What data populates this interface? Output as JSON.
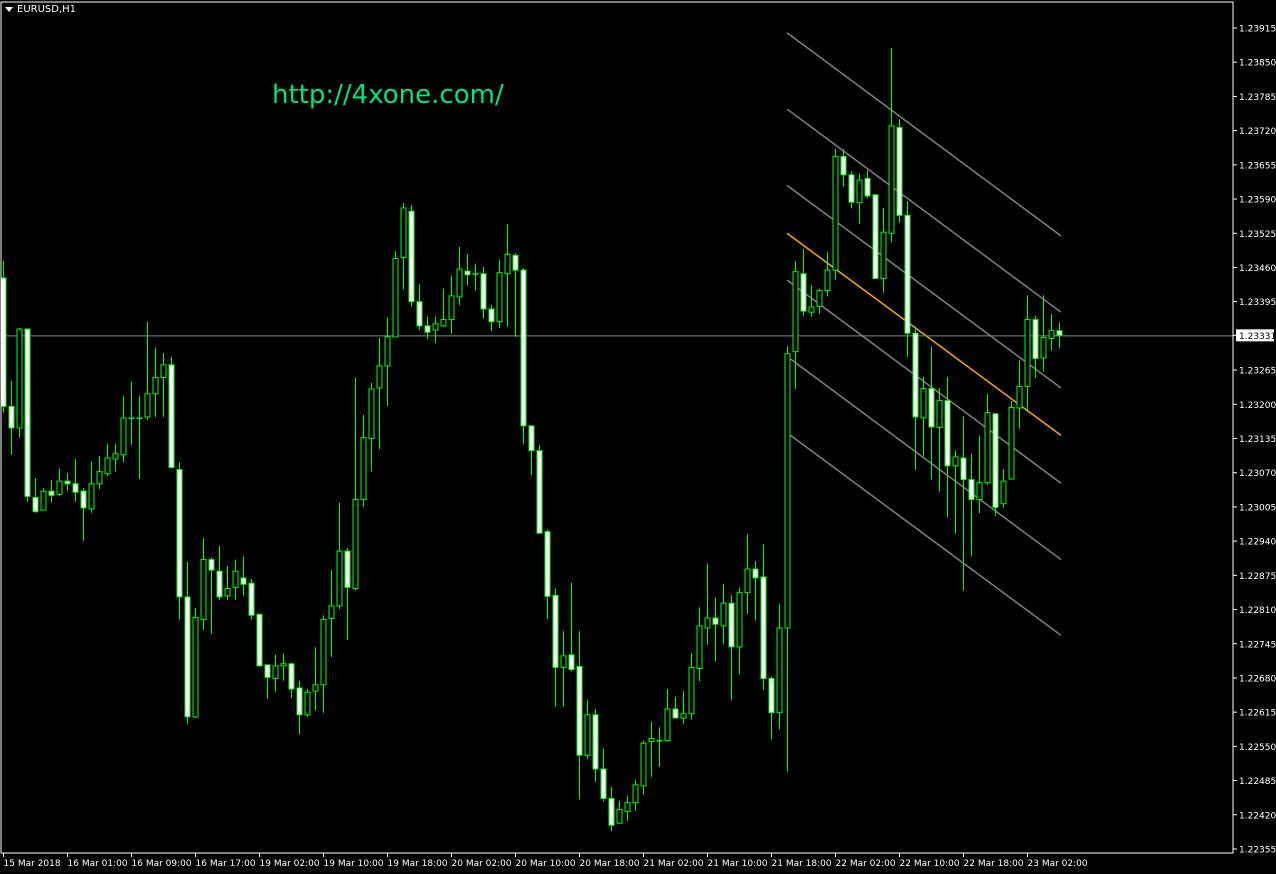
{
  "window": {
    "symbol_title": "EURUSD,H1"
  },
  "watermark": {
    "text": "http://4xone.com/",
    "color": "#00e676"
  },
  "colors": {
    "background": "#000000",
    "axes": "#ffffff",
    "candle_outline": "#00ff00",
    "bear_fill": "#ffffff",
    "bull_fill": "#000000",
    "bid_line": "#778899",
    "channel_lines": "#808080",
    "channel_center": "#ffa500"
  },
  "chart_data": {
    "type": "candlestick",
    "symbol": "EURUSD",
    "timeframe": "H1",
    "ylim": [
      1.22355,
      1.23915
    ],
    "y_ticks": [
      "1.23915",
      "1.23850",
      "1.23785",
      "1.23720",
      "1.23655",
      "1.23590",
      "1.23525",
      "1.23460",
      "1.23395",
      "1.23331",
      "1.23265",
      "1.23200",
      "1.23135",
      "1.23070",
      "1.23005",
      "1.22940",
      "1.22875",
      "1.22810",
      "1.22745",
      "1.22680",
      "1.22615",
      "1.22550",
      "1.22485",
      "1.22420",
      "1.22355"
    ],
    "current_price": "1.23331",
    "x_ticks": [
      "15 Mar 2018",
      "16 Mar 01:00",
      "16 Mar 09:00",
      "16 Mar 17:00",
      "19 Mar 02:00",
      "19 Mar 10:00",
      "19 Mar 18:00",
      "20 Mar 02:00",
      "20 Mar 10:00",
      "20 Mar 18:00",
      "21 Mar 02:00",
      "21 Mar 10:00",
      "21 Mar 18:00",
      "22 Mar 02:00",
      "22 Mar 10:00",
      "22 Mar 18:00",
      "23 Mar 02:00"
    ],
    "ohlc_fields": [
      "open",
      "high",
      "low",
      "close"
    ],
    "candles": [
      [
        1.2344,
        1.23473,
        1.23184,
        1.23196
      ],
      [
        1.23196,
        1.23245,
        1.23104,
        1.23155
      ],
      [
        1.23155,
        1.23345,
        1.23137,
        1.23343
      ],
      [
        1.23343,
        1.23343,
        1.23015,
        1.23025
      ],
      [
        1.23023,
        1.2306,
        1.22994,
        1.22996
      ],
      [
        1.22999,
        1.23041,
        1.22999,
        1.23035
      ],
      [
        1.23035,
        1.23056,
        1.23013,
        1.23027
      ],
      [
        1.23029,
        1.23078,
        1.23025,
        1.23054
      ],
      [
        1.23054,
        1.2307,
        1.23035,
        1.23049
      ],
      [
        1.23049,
        1.23096,
        1.23015,
        1.23033
      ],
      [
        1.23035,
        1.23041,
        1.22941,
        1.23003
      ],
      [
        1.23001,
        1.23092,
        1.22994,
        1.23049
      ],
      [
        1.23049,
        1.23102,
        1.23039,
        1.23072
      ],
      [
        1.23068,
        1.23125,
        1.23064,
        1.23098
      ],
      [
        1.23096,
        1.23125,
        1.23072,
        1.23106
      ],
      [
        1.23104,
        1.23216,
        1.2309,
        1.23174
      ],
      [
        1.23174,
        1.23243,
        1.23123,
        1.23174
      ],
      [
        1.23174,
        1.23216,
        1.23058,
        1.23174
      ],
      [
        1.23176,
        1.23357,
        1.2317,
        1.2322
      ],
      [
        1.2322,
        1.23308,
        1.23176,
        1.23251
      ],
      [
        1.23251,
        1.23298,
        1.23176,
        1.23275
      ],
      [
        1.23275,
        1.2329,
        1.23078,
        1.2308
      ],
      [
        1.23076,
        1.2309,
        1.22791,
        1.22834
      ],
      [
        1.22834,
        1.22901,
        1.22593,
        1.22606
      ],
      [
        1.22606,
        1.22813,
        1.22604,
        1.22795
      ],
      [
        1.22791,
        1.22946,
        1.22771,
        1.22905
      ],
      [
        1.22905,
        1.22909,
        1.22764,
        1.22885
      ],
      [
        1.22883,
        1.22931,
        1.22828,
        1.22834
      ],
      [
        1.22836,
        1.22893,
        1.22828,
        1.2285
      ],
      [
        1.22852,
        1.22905,
        1.22828,
        1.22883
      ],
      [
        1.2287,
        1.22911,
        1.22836,
        1.22858
      ],
      [
        1.2286,
        1.22868,
        1.22791,
        1.22799
      ],
      [
        1.22801,
        1.22801,
        1.22701,
        1.22703
      ],
      [
        1.22705,
        1.22705,
        1.2264,
        1.22681
      ],
      [
        1.22679,
        1.22724,
        1.22653,
        1.22703
      ],
      [
        1.22703,
        1.22726,
        1.22675,
        1.22707
      ],
      [
        1.22707,
        1.22709,
        1.22642,
        1.22659
      ],
      [
        1.22661,
        1.22675,
        1.22573,
        1.2261
      ],
      [
        1.2261,
        1.22659,
        1.22606,
        1.22653
      ],
      [
        1.22655,
        1.22738,
        1.22618,
        1.22667
      ],
      [
        1.22667,
        1.22799,
        1.22614,
        1.22791
      ],
      [
        1.22793,
        1.22885,
        1.2272,
        1.22817
      ],
      [
        1.22817,
        1.23013,
        1.22811,
        1.22921
      ],
      [
        1.22921,
        1.22927,
        1.22752,
        1.22852
      ],
      [
        1.2285,
        1.23251,
        1.22846,
        1.23019
      ],
      [
        1.23019,
        1.2318,
        1.23005,
        1.23137
      ],
      [
        1.23135,
        1.23241,
        1.23072,
        1.23229
      ],
      [
        1.23231,
        1.23326,
        1.23115,
        1.23273
      ],
      [
        1.23273,
        1.23365,
        1.23196,
        1.23328
      ],
      [
        1.23328,
        1.23491,
        1.23328,
        1.23477
      ],
      [
        1.23479,
        1.23583,
        1.23418,
        1.23573
      ],
      [
        1.23567,
        1.23579,
        1.23385,
        1.23395
      ],
      [
        1.23395,
        1.23428,
        1.23341,
        1.23349
      ],
      [
        1.23349,
        1.23367,
        1.23324,
        1.23337
      ],
      [
        1.23341,
        1.23367,
        1.23316,
        1.23353
      ],
      [
        1.23349,
        1.2342,
        1.23347,
        1.23361
      ],
      [
        1.23361,
        1.23444,
        1.23334,
        1.23406
      ],
      [
        1.23404,
        1.23499,
        1.23389,
        1.23457
      ],
      [
        1.23453,
        1.23485,
        1.23426,
        1.23446
      ],
      [
        1.23448,
        1.23467,
        1.23416,
        1.23448
      ],
      [
        1.23448,
        1.23461,
        1.23363,
        1.23381
      ],
      [
        1.23381,
        1.23389,
        1.23339,
        1.23357
      ],
      [
        1.23357,
        1.23475,
        1.23345,
        1.2345
      ],
      [
        1.23448,
        1.23542,
        1.23347,
        1.23485
      ],
      [
        1.23483,
        1.23487,
        1.23328,
        1.23455
      ],
      [
        1.23455,
        1.23459,
        1.23125,
        1.23159
      ],
      [
        1.23159,
        1.23159,
        1.23065,
        1.23112
      ],
      [
        1.23112,
        1.23123,
        1.22955,
        1.22955
      ],
      [
        1.22958,
        1.22962,
        1.22792,
        1.22835
      ],
      [
        1.22837,
        1.2285,
        1.22625,
        1.227
      ],
      [
        1.227,
        1.22769,
        1.22625,
        1.22722
      ],
      [
        1.22724,
        1.22861,
        1.22692,
        1.22696
      ],
      [
        1.22702,
        1.22769,
        1.22449,
        1.22533
      ],
      [
        1.22533,
        1.22638,
        1.22526,
        1.2261
      ],
      [
        1.2261,
        1.22621,
        1.22483,
        1.22507
      ],
      [
        1.22507,
        1.22546,
        1.22445,
        1.22451
      ],
      [
        1.22451,
        1.22473,
        1.22389,
        1.224
      ],
      [
        1.22404,
        1.22447,
        1.22404,
        1.2243
      ],
      [
        1.22426,
        1.22456,
        1.22408,
        1.22443
      ],
      [
        1.22443,
        1.22486,
        1.22428,
        1.22477
      ],
      [
        1.22475,
        1.22561,
        1.22458,
        1.22556
      ],
      [
        1.22559,
        1.22597,
        1.22492,
        1.22565
      ],
      [
        1.22561,
        1.22586,
        1.22511,
        1.22561
      ],
      [
        1.22561,
        1.22659,
        1.22559,
        1.22621
      ],
      [
        1.22621,
        1.22644,
        1.22604,
        1.22604
      ],
      [
        1.22604,
        1.22655,
        1.22593,
        1.22612
      ],
      [
        1.22612,
        1.22728,
        1.22601,
        1.227
      ],
      [
        1.22698,
        1.22814,
        1.22674,
        1.22779
      ],
      [
        1.22775,
        1.22897,
        1.22743,
        1.22794
      ],
      [
        1.22794,
        1.22833,
        1.22711,
        1.22782
      ],
      [
        1.22779,
        1.22859,
        1.22745,
        1.22822
      ],
      [
        1.22822,
        1.22837,
        1.22638,
        1.22739
      ],
      [
        1.22739,
        1.22852,
        1.22687,
        1.22842
      ],
      [
        1.22842,
        1.22953,
        1.22801,
        1.22887
      ],
      [
        1.22887,
        1.22902,
        1.2279,
        1.2287
      ],
      [
        1.22872,
        1.22934,
        1.22657,
        1.22679
      ],
      [
        1.22679,
        1.22683,
        1.22563,
        1.22614
      ],
      [
        1.22614,
        1.2282,
        1.22582,
        1.22775
      ],
      [
        1.22775,
        1.23311,
        1.22502,
        1.23296
      ],
      [
        1.233,
        1.23472,
        1.23229,
        1.23452
      ],
      [
        1.23448,
        1.23495,
        1.23368,
        1.23377
      ],
      [
        1.23375,
        1.23426,
        1.23366,
        1.23385
      ],
      [
        1.23386,
        1.2342,
        1.23372,
        1.23416
      ],
      [
        1.23416,
        1.23489,
        1.23405,
        1.23455
      ],
      [
        1.23455,
        1.23685,
        1.23436,
        1.23671
      ],
      [
        1.23671,
        1.23685,
        1.23613,
        1.23636
      ],
      [
        1.23636,
        1.23643,
        1.23572,
        1.23584
      ],
      [
        1.23583,
        1.23638,
        1.23543,
        1.23626
      ],
      [
        1.23629,
        1.23645,
        1.23591,
        1.23596
      ],
      [
        1.23598,
        1.23598,
        1.23439,
        1.23439
      ],
      [
        1.23439,
        1.23573,
        1.23412,
        1.23527
      ],
      [
        1.23525,
        1.23877,
        1.23508,
        1.23729
      ],
      [
        1.23726,
        1.23742,
        1.23545,
        1.23559
      ],
      [
        1.23559,
        1.23586,
        1.2329,
        1.23335
      ],
      [
        1.23335,
        1.23348,
        1.23075,
        1.23176
      ],
      [
        1.23174,
        1.23252,
        1.23101,
        1.2323
      ],
      [
        1.2323,
        1.2331,
        1.23057,
        1.23157
      ],
      [
        1.23156,
        1.23231,
        1.23034,
        1.23207
      ],
      [
        1.23207,
        1.23252,
        1.22985,
        1.23083
      ],
      [
        1.23083,
        1.23112,
        1.22954,
        1.231
      ],
      [
        1.23098,
        1.23177,
        1.22846,
        1.23057
      ],
      [
        1.23057,
        1.23106,
        1.22911,
        1.23019
      ],
      [
        1.23019,
        1.2314,
        1.22993,
        1.23051
      ],
      [
        1.23051,
        1.2322,
        1.23047,
        1.23184
      ],
      [
        1.23182,
        1.23182,
        1.22988,
        1.23004
      ],
      [
        1.23011,
        1.23077,
        1.23004,
        1.23054
      ],
      [
        1.23058,
        1.23206,
        1.23058,
        1.23194
      ],
      [
        1.23193,
        1.23284,
        1.23154,
        1.23234
      ],
      [
        1.23234,
        1.23407,
        1.23186,
        1.23361
      ],
      [
        1.23361,
        1.23368,
        1.2325,
        1.23287
      ],
      [
        1.23288,
        1.23407,
        1.23262,
        1.23327
      ],
      [
        1.23325,
        1.23372,
        1.23302,
        1.2334
      ],
      [
        1.2334,
        1.23356,
        1.23307,
        1.23331
      ]
    ],
    "channel": {
      "start_time": "21 Mar 20:00",
      "end_time": "23 Mar 06:00",
      "lines": [
        {
          "role": "upper-3",
          "start": 1.23906,
          "end": 1.2352
        },
        {
          "role": "upper-2",
          "start": 1.23761,
          "end": 1.23375
        },
        {
          "role": "upper-1",
          "start": 1.23616,
          "end": 1.23231
        },
        {
          "role": "center",
          "start": 1.23525,
          "end": 1.23141
        },
        {
          "role": "lower-1",
          "start": 1.23436,
          "end": 1.2305
        },
        {
          "role": "lower-2",
          "start": 1.23291,
          "end": 1.22905
        },
        {
          "role": "lower-3",
          "start": 1.23146,
          "end": 1.22761
        }
      ]
    }
  }
}
